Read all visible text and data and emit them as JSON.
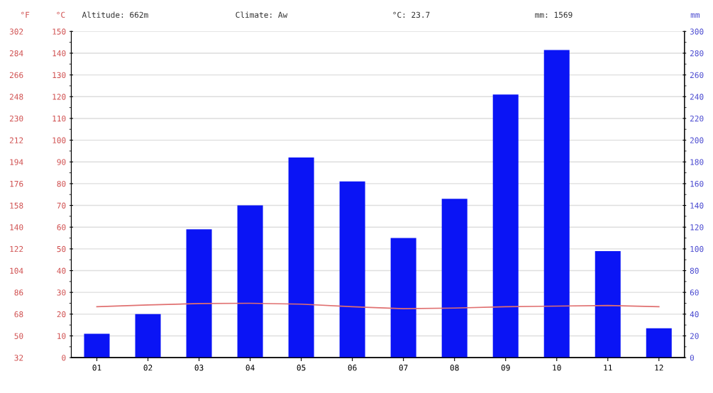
{
  "chart_data": {
    "type": "bar",
    "categories": [
      "01",
      "02",
      "03",
      "04",
      "05",
      "06",
      "07",
      "08",
      "09",
      "10",
      "11",
      "12"
    ],
    "series": [
      {
        "axis": "y2",
        "color": "#0a14f5",
        "values": [
          22,
          40,
          118,
          140,
          184,
          162,
          110,
          146,
          242,
          283,
          98,
          27
        ]
      },
      {
        "type": "line",
        "axis": "y",
        "color": "#e07070",
        "values": [
          23.4,
          24.2,
          24.9,
          25,
          24.6,
          23.4,
          22.5,
          22.8,
          23.4,
          23.7,
          24,
          23.4
        ]
      }
    ],
    "ylabel": "°C",
    "y2label": "mm",
    "y3label": "°F",
    "ylim": [
      0,
      150
    ],
    "yticks": [
      0,
      10,
      20,
      30,
      40,
      50,
      60,
      70,
      80,
      90,
      100,
      110,
      120,
      130,
      140,
      150
    ],
    "y2lim": [
      0,
      300
    ],
    "y2ticks": [
      0,
      20,
      40,
      60,
      80,
      100,
      120,
      140,
      160,
      180,
      200,
      220,
      240,
      260,
      280,
      300
    ],
    "y3lim": [
      32,
      302
    ],
    "y3ticks": [
      32,
      50,
      68,
      86,
      104,
      122,
      140,
      158,
      176,
      194,
      212,
      230,
      248,
      266,
      284,
      302
    ],
    "annotations": [
      "Altitude: 662m",
      "Climate: Aw",
      "°C: 23.7",
      "mm: 1569"
    ],
    "grid": "y",
    "legend": false
  }
}
